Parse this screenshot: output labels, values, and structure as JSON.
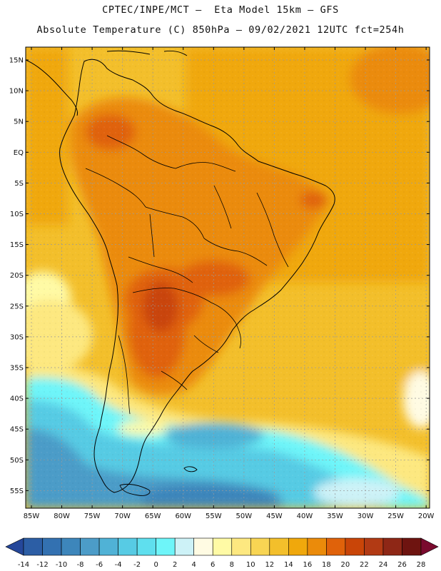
{
  "title": {
    "line1": "CPTEC/INPE/MCT –  Eta Model 15km – GFS",
    "line2": "Absolute Temperature (C) 850hPa – 09/02/2021 12UTC fct=254h"
  },
  "map": {
    "lat_labels": [
      "15N",
      "10N",
      "5N",
      "EQ",
      "5S",
      "10S",
      "15S",
      "20S",
      "25S",
      "30S",
      "35S",
      "40S",
      "45S",
      "50S",
      "55S"
    ],
    "lon_labels": [
      "85W",
      "80W",
      "75W",
      "70W",
      "65W",
      "60W",
      "55W",
      "50W",
      "45W",
      "40W",
      "35W",
      "30W",
      "25W",
      "20W"
    ]
  },
  "colorbar": {
    "labels": [
      "-14",
      "-12",
      "-10",
      "-8",
      "-6",
      "-4",
      "-2",
      "0",
      "2",
      "4",
      "6",
      "8",
      "10",
      "12",
      "14",
      "16",
      "18",
      "20",
      "22",
      "24",
      "26",
      "28"
    ],
    "colors": [
      "#25479a",
      "#2c5ea5",
      "#3371b1",
      "#3d86bb",
      "#4c9cc8",
      "#50b2d6",
      "#57cbe4",
      "#5fdfee",
      "#6ef5f9",
      "#cdf2f7",
      "#fffbe3",
      "#fffaa5",
      "#fde880",
      "#f8d553",
      "#f3bf2b",
      "#f0a80c",
      "#eb8b0a",
      "#e0620a",
      "#c94508",
      "#b23a14",
      "#8e2716",
      "#6e1410",
      "#7a0a2e"
    ]
  }
}
